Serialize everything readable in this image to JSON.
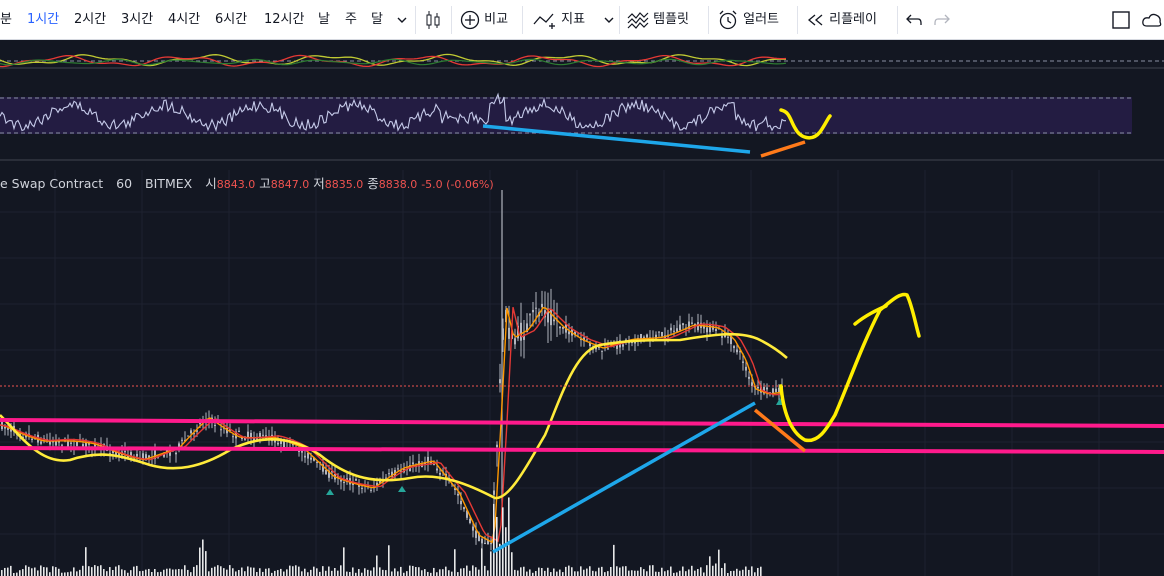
{
  "toolbar": {
    "intervals": [
      {
        "label": "분",
        "active": false
      },
      {
        "label": "1시간",
        "active": true
      },
      {
        "label": "2시간",
        "active": false
      },
      {
        "label": "3시간",
        "active": false
      },
      {
        "label": "4시간",
        "active": false
      },
      {
        "label": "6시간",
        "active": false
      },
      {
        "label": "12시간",
        "active": false
      },
      {
        "label": "날",
        "active": false
      },
      {
        "label": "주",
        "active": false
      },
      {
        "label": "달",
        "active": false
      }
    ],
    "compare_label": "비교",
    "indicators_label": "지표",
    "templates_label": "템플릿",
    "alert_label": "얼러트",
    "replay_label": "리플레이"
  },
  "legend": {
    "symbol": "e Swap Contract",
    "interval": "60",
    "exchange": "BITMEX",
    "open_label": "시",
    "open": "8843.0",
    "high_label": "고",
    "high": "8847.0",
    "low_label": "저",
    "low": "8835.0",
    "close_label": "종",
    "close": "8838.0",
    "change": "-5.0 (-0.06%)"
  },
  "colors": {
    "background": "#131722",
    "toolbar_bg": "#ffffff",
    "active_interval": "#2962ff",
    "legend_value": "#ef5350",
    "price_candles": "#b2b5be",
    "ma_yellow": "#ffeb3b",
    "ma_orange": "#ff9800",
    "ma_red": "#e53935",
    "rsi_line": "#c5cae9",
    "rsi_band": "#2a1f4d",
    "drawing_magenta": "#ff1a8c",
    "drawing_blue": "#1ea7ea",
    "drawing_orange": "#ff7a1a",
    "drawing_yellow": "#ffee00",
    "volume": "#ffffff"
  },
  "chart_data": {
    "type": "line",
    "symbol": "e Swap Contract",
    "interval": "60",
    "exchange": "BITMEX",
    "ohlc": {
      "open": 8843.0,
      "high": 8847.0,
      "low": 8835.0,
      "close": 8838.0,
      "change": -5.0,
      "change_pct": -0.06
    },
    "grid": true,
    "panels": [
      "oscillator",
      "rsi",
      "price",
      "volume"
    ]
  }
}
